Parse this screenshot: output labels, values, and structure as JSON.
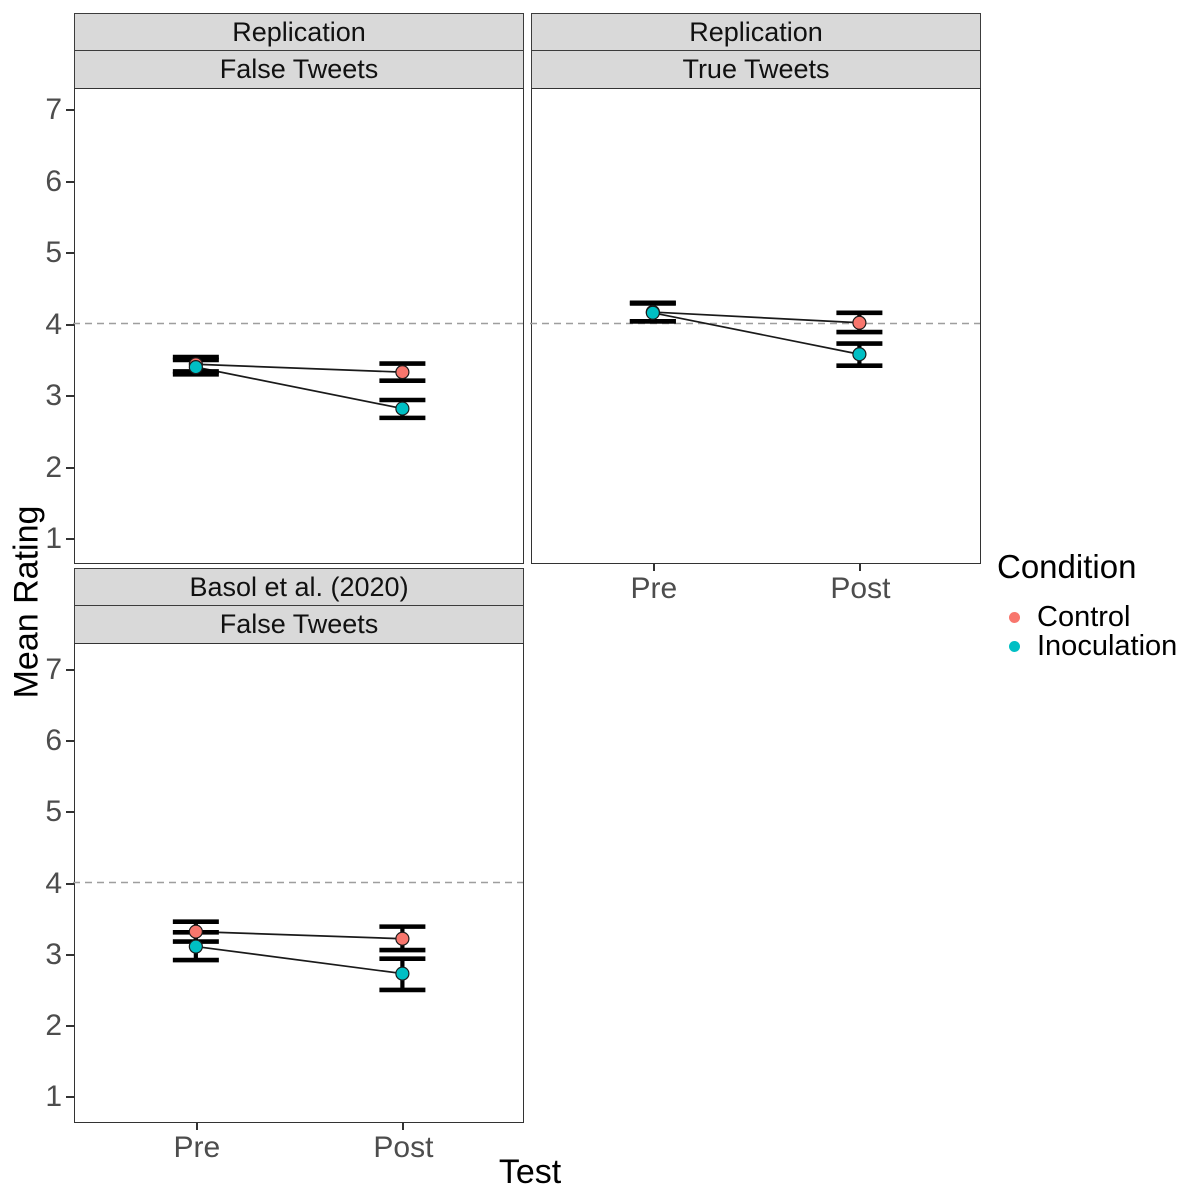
{
  "figure": {
    "y_axis_title": "Mean Rating",
    "x_axis_title": "Test"
  },
  "legend": {
    "title": "Condition",
    "position": "right",
    "items": [
      {
        "label": "Control",
        "color": "#F8766D"
      },
      {
        "label": "Inoculation",
        "color": "#00BFC4"
      }
    ]
  },
  "chart_data": [
    {
      "type": "line",
      "facet": {
        "study": "Replication",
        "tweet_type": "False Tweets"
      },
      "x": [
        "Pre",
        "Post"
      ],
      "xlabel": "Test",
      "ylabel": "Mean Rating",
      "ylim": [
        1,
        7
      ],
      "yticks": [
        1,
        2,
        3,
        4,
        5,
        6,
        7
      ],
      "reference_line_y": 4,
      "grid": false,
      "error_bars": "shown",
      "series": [
        {
          "name": "Control",
          "color": "#F8766D",
          "values": [
            3.43,
            3.32
          ],
          "ci_low": [
            3.33,
            3.2
          ],
          "ci_high": [
            3.53,
            3.44
          ]
        },
        {
          "name": "Inoculation",
          "color": "#00BFC4",
          "values": [
            3.39,
            2.81
          ],
          "ci_low": [
            3.29,
            2.68
          ],
          "ci_high": [
            3.49,
            2.93
          ]
        }
      ]
    },
    {
      "type": "line",
      "facet": {
        "study": "Replication",
        "tweet_type": "True Tweets"
      },
      "x": [
        "Pre",
        "Post"
      ],
      "xlabel": "Test",
      "ylabel": "Mean Rating",
      "ylim": [
        1,
        7
      ],
      "yticks": [
        1,
        2,
        3,
        4,
        5,
        6,
        7
      ],
      "reference_line_y": 4,
      "grid": false,
      "error_bars": "shown",
      "series": [
        {
          "name": "Control",
          "color": "#F8766D",
          "values": [
            4.16,
            4.01
          ],
          "ci_low": [
            4.03,
            3.88
          ],
          "ci_high": [
            4.29,
            4.15
          ]
        },
        {
          "name": "Inoculation",
          "color": "#00BFC4",
          "values": [
            4.15,
            3.57
          ],
          "ci_low": [
            4.03,
            3.41
          ],
          "ci_high": [
            4.28,
            3.72
          ]
        }
      ]
    },
    {
      "type": "line",
      "facet": {
        "study": "Basol et al. (2020)",
        "tweet_type": "False Tweets"
      },
      "x": [
        "Pre",
        "Post"
      ],
      "xlabel": "Test",
      "ylabel": "Mean Rating",
      "ylim": [
        1,
        7
      ],
      "yticks": [
        1,
        2,
        3,
        4,
        5,
        6,
        7
      ],
      "reference_line_y": 4,
      "grid": false,
      "error_bars": "shown",
      "series": [
        {
          "name": "Control",
          "color": "#F8766D",
          "values": [
            3.31,
            3.21
          ],
          "ci_low": [
            3.17,
            3.05
          ],
          "ci_high": [
            3.45,
            3.38
          ]
        },
        {
          "name": "Inoculation",
          "color": "#00BFC4",
          "values": [
            3.1,
            2.72
          ],
          "ci_low": [
            2.91,
            2.49
          ],
          "ci_high": [
            3.3,
            2.93
          ]
        }
      ]
    }
  ]
}
